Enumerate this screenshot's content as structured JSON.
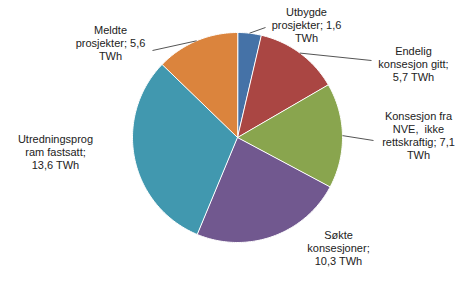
{
  "chart_data": {
    "type": "pie",
    "categories": [
      "Utbygde prosjekter",
      "Endelig konsesjon gitt",
      "Konsesjon fra NVE, ikke rettskraftig",
      "Søkte konsesjoner",
      "Utredningsprogram fastsatt",
      "Meldte prosjekter"
    ],
    "values": [
      1.6,
      5.7,
      7.1,
      10.3,
      13.6,
      5.6
    ],
    "value_labels": [
      "Utbygde\nprosjekter; 1,6\nTWh",
      "Endelig\nkonsesjon gitt;\n5,7 TWh",
      "Konsesjon fra\nNVE,  ikke\nrettskraftig; 7,1\nTWh",
      "Søkte\nkonsesjoner;\n10,3 TWh",
      "Utredningsprog\nram fastsatt;\n13,6 TWh",
      "Meldte\nprosjekter; 5,6\nTWh"
    ],
    "colors": [
      "#4572A7",
      "#AA4643",
      "#89A54E",
      "#71588F",
      "#4198AF",
      "#DB843D"
    ],
    "data_labels": true
  }
}
